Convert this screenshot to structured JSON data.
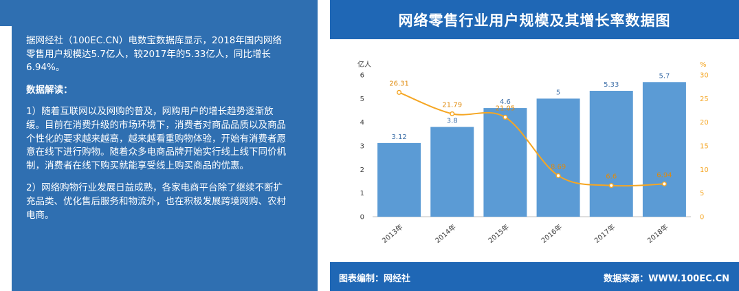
{
  "left": {
    "intro": "据网经社（100EC.CN）电数宝数据库显示，2018年国内网络零售用户规模达5.7亿人，较2017年的5.33亿人，同比增长6.94%。",
    "subtitle": "数据解读：",
    "point1": "1）随着互联网以及网购的普及，网购用户的增长趋势逐渐放缓。目前在消费升级的市场环境下，消费者对商品品质以及商品个性化的要求越来越高，越来越看重购物体验，开始有消费者愿意在线下进行购物。随着众多电商品牌开始实行线上线下同价机制，消费者在线下购买就能享受线上购买商品的优惠。",
    "point2": "2）网络购物行业发展日益成熟，各家电商平台除了继续不断扩充品类、优化售后服务和物流外，也在积极发展跨境网购、农村电商。"
  },
  "header": {
    "title": "网络零售行业用户规模及其增长率数据图"
  },
  "footer": {
    "compiled_by": "图表编制：网经社",
    "source": "数据来源：WWW.100EC.CN"
  },
  "colors": {
    "bar": "#5b9bd5",
    "line": "#f5a623",
    "panel": "#2f6fb1",
    "header": "#1f67b5"
  },
  "chart_data": {
    "type": "bar",
    "categories": [
      "2013年",
      "2014年",
      "2015年",
      "2016年",
      "2017年",
      "2018年"
    ],
    "series": [
      {
        "values": [
          3.12,
          3.8,
          4.6,
          5,
          5.33,
          5.7
        ],
        "axis": "left",
        "type": "bar"
      },
      {
        "values": [
          26.31,
          21.79,
          21.05,
          8.69,
          6.6,
          6.94
        ],
        "axis": "right",
        "type": "line"
      }
    ],
    "ylabel": "亿人",
    "ylim": [
      0,
      6
    ],
    "yticks": [
      0,
      1,
      2,
      3,
      4,
      5,
      6
    ],
    "y2label": "%",
    "y2lim": [
      0,
      30
    ],
    "y2ticks": [
      0,
      5,
      10,
      15,
      20,
      25,
      30
    ],
    "grid": false
  }
}
